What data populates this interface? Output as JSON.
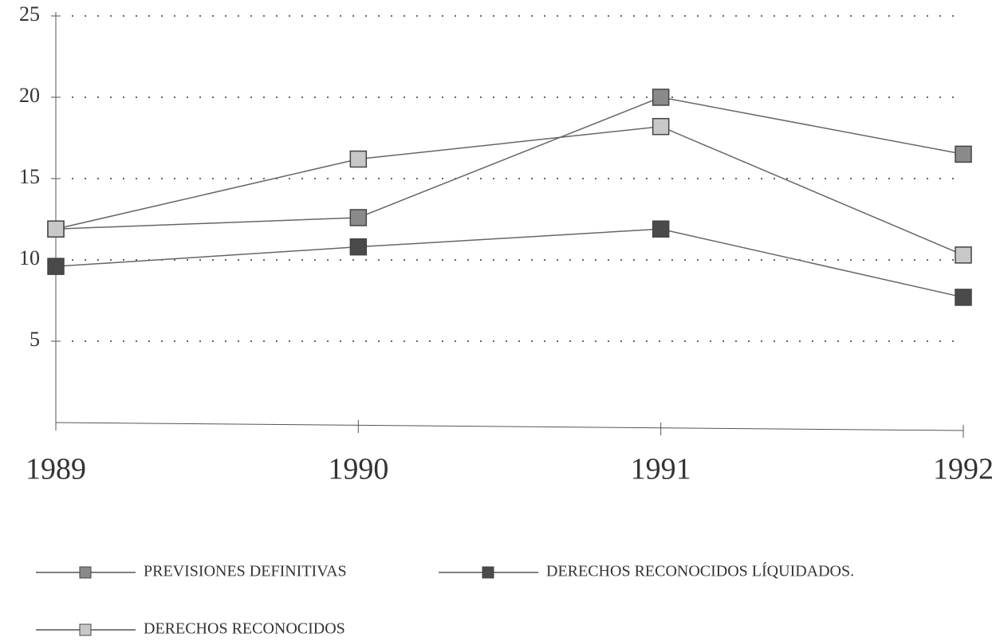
{
  "chart_data": {
    "type": "line",
    "categories": [
      "1989",
      "1990",
      "1991",
      "1992"
    ],
    "series": [
      {
        "name": "PREVISIONES DEFINITIVAS",
        "color": "#8a8a8a",
        "values": [
          11.9,
          12.6,
          20,
          16.5
        ]
      },
      {
        "name": "DERECHOS RECONOCIDOS LÍQUIDADOS.",
        "color": "#4a4a4a",
        "values": [
          9.6,
          10.8,
          11.9,
          7.7
        ]
      },
      {
        "name": "DERECHOS RECONOCIDOS",
        "color": "#c8c8c8",
        "values": [
          11.9,
          16.2,
          18.2,
          10.3
        ]
      }
    ],
    "ylim": [
      0,
      25
    ],
    "yticks": [
      5,
      10,
      15,
      20,
      25
    ],
    "grid": true
  }
}
